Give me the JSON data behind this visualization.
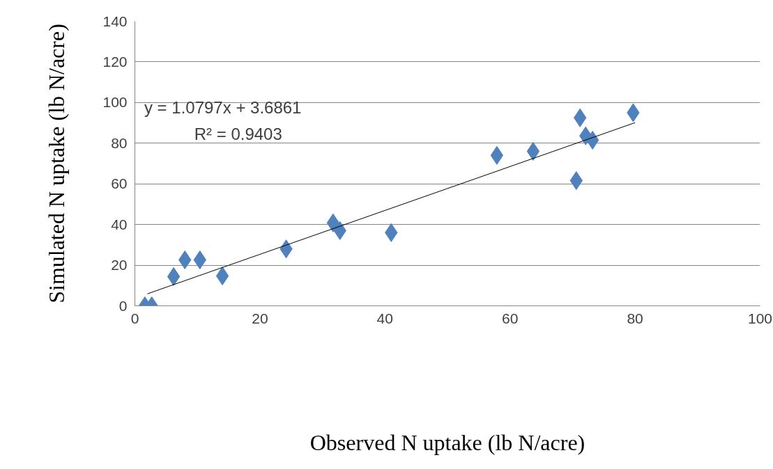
{
  "chart_data": {
    "type": "scatter",
    "xlabel": "Observed N uptake (lb N/acre)",
    "ylabel": "Simulated N uptake (lb N/acre)",
    "xlim": [
      0,
      100
    ],
    "ylim": [
      0,
      140
    ],
    "xticks": [
      0,
      20,
      40,
      60,
      80,
      100
    ],
    "yticks": [
      0,
      20,
      40,
      60,
      80,
      100,
      120,
      140
    ],
    "grid": "y",
    "series": [
      {
        "marker": "diamond",
        "color": "#4f81bd",
        "x": [
          1.6,
          2.7,
          6.2,
          8.0,
          10.4,
          14.0,
          24.2,
          31.7,
          32.8,
          41.0,
          57.9,
          63.7,
          70.6,
          71.2,
          72.1,
          73.2,
          79.7
        ],
        "values": [
          0,
          0,
          14.4,
          22.6,
          22.6,
          14.7,
          28,
          40.8,
          37,
          36,
          74,
          76,
          61.6,
          92.5,
          83.6,
          81.5,
          95
        ]
      },
      {
        "type": "line",
        "color": "#000000",
        "x": [
          2,
          80
        ],
        "values": [
          5.9,
          90.1
        ]
      }
    ],
    "annotations": [
      "y = 1.0797x + 3.6861",
      "R² = 0.9403"
    ]
  }
}
